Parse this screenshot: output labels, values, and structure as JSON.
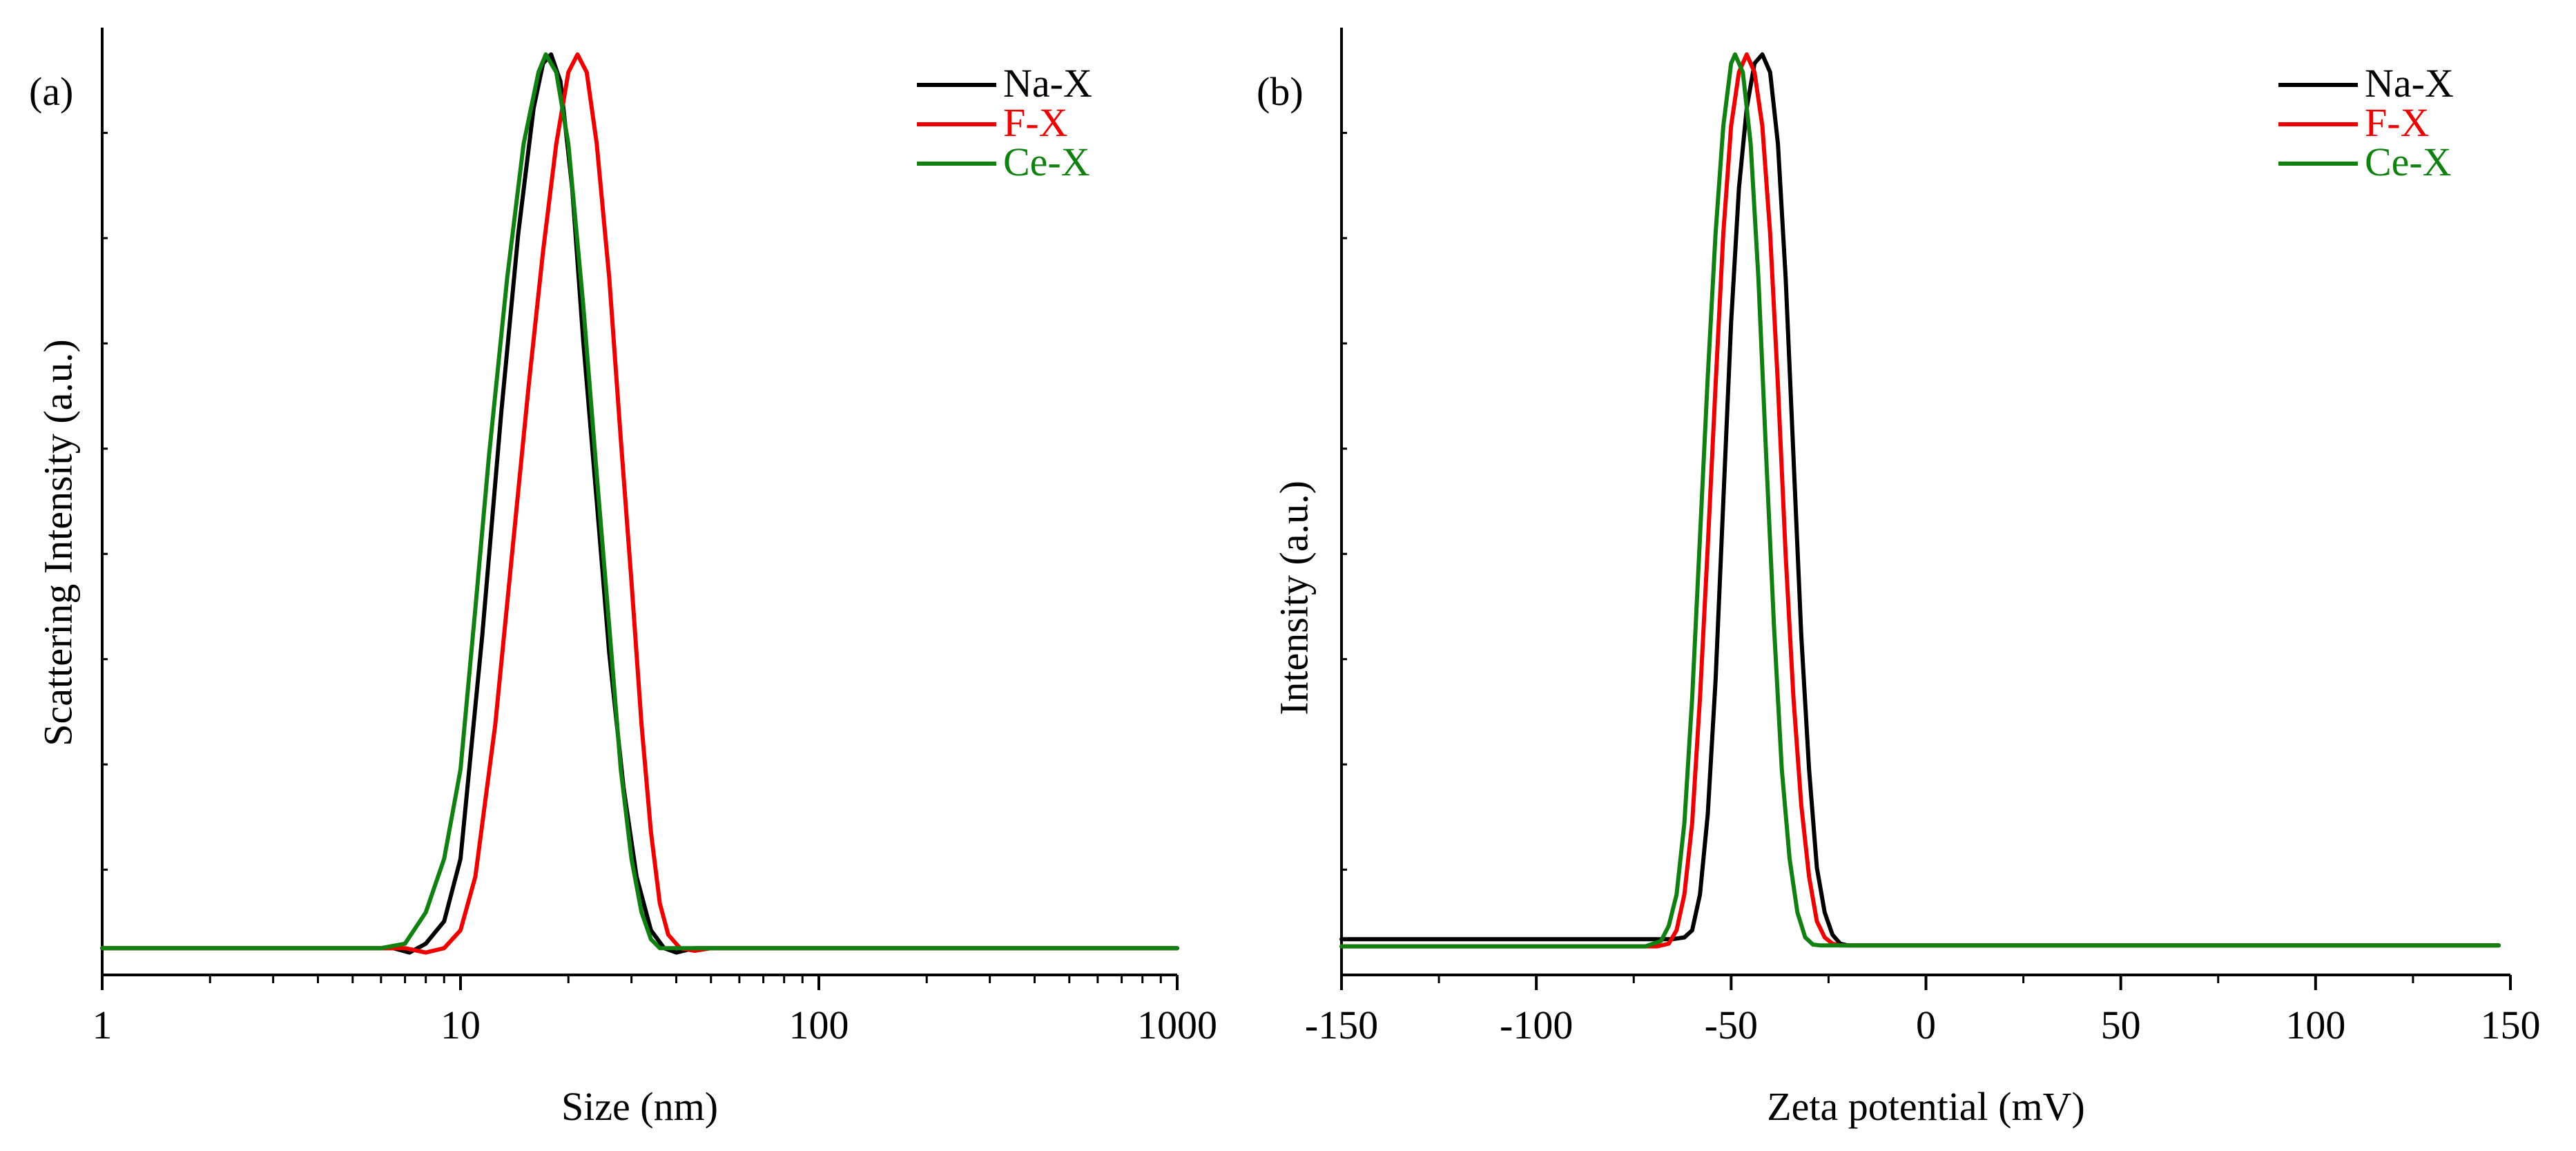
{
  "colors": {
    "series": [
      "#000000",
      "#ee0000",
      "#108010"
    ],
    "axis": "#000000"
  },
  "chart_data": [
    {
      "panel_label": "(a)",
      "type": "line",
      "x_scale": "log",
      "title": "",
      "xlabel": "Size  (nm)",
      "ylabel": "Scattering Intensity (a.u.)",
      "xlim": [
        1,
        1000
      ],
      "ylim": [
        -0.03,
        1.03
      ],
      "x_ticks": [
        1,
        10,
        100,
        1000
      ],
      "x_tick_labels": [
        "1",
        "10",
        "100",
        "1000"
      ],
      "legend": [
        "Na-X",
        "F-X",
        "Ce-X"
      ],
      "legend_position": "top-right",
      "y_tick_labels_shown": false,
      "series": [
        {
          "name": "Na-X",
          "color": "#000000",
          "baseline": 0,
          "points": [
            [
              1,
              0
            ],
            [
              6.5,
              0
            ],
            [
              7.2,
              -0.005
            ],
            [
              8,
              0.005
            ],
            [
              9,
              0.03
            ],
            [
              10,
              0.1
            ],
            [
              11.5,
              0.35
            ],
            [
              13,
              0.6
            ],
            [
              14.5,
              0.8
            ],
            [
              16,
              0.94
            ],
            [
              17,
              0.99
            ],
            [
              17.9,
              1
            ],
            [
              19,
              0.97
            ],
            [
              20.5,
              0.85
            ],
            [
              22,
              0.68
            ],
            [
              24,
              0.5
            ],
            [
              26,
              0.33
            ],
            [
              28.5,
              0.18
            ],
            [
              31,
              0.08
            ],
            [
              34,
              0.02
            ],
            [
              37,
              0
            ],
            [
              40,
              -0.005
            ],
            [
              45,
              0
            ],
            [
              1000,
              0
            ]
          ]
        },
        {
          "name": "F-X",
          "color": "#ee0000",
          "baseline": 0,
          "points": [
            [
              1,
              0
            ],
            [
              7,
              0
            ],
            [
              8,
              -0.005
            ],
            [
              9,
              0
            ],
            [
              10,
              0.02
            ],
            [
              11,
              0.08
            ],
            [
              12.5,
              0.25
            ],
            [
              14,
              0.45
            ],
            [
              15.5,
              0.63
            ],
            [
              17,
              0.78
            ],
            [
              18.5,
              0.9
            ],
            [
              20,
              0.98
            ],
            [
              21.2,
              1
            ],
            [
              22.5,
              0.98
            ],
            [
              24,
              0.9
            ],
            [
              26,
              0.75
            ],
            [
              28,
              0.57
            ],
            [
              30,
              0.41
            ],
            [
              32,
              0.25
            ],
            [
              34,
              0.13
            ],
            [
              36,
              0.05
            ],
            [
              38,
              0.015
            ],
            [
              41,
              0
            ],
            [
              45,
              -0.003
            ],
            [
              50,
              0
            ],
            [
              1000,
              0
            ]
          ]
        },
        {
          "name": "Ce-X",
          "color": "#108010",
          "baseline": 0,
          "points": [
            [
              1,
              0
            ],
            [
              6,
              0
            ],
            [
              7,
              0.005
            ],
            [
              8,
              0.04
            ],
            [
              9,
              0.1
            ],
            [
              10,
              0.2
            ],
            [
              11,
              0.38
            ],
            [
              12,
              0.55
            ],
            [
              13.5,
              0.75
            ],
            [
              15,
              0.9
            ],
            [
              16.5,
              0.98
            ],
            [
              17.3,
              1
            ],
            [
              18.5,
              0.98
            ],
            [
              20,
              0.9
            ],
            [
              22,
              0.72
            ],
            [
              24,
              0.53
            ],
            [
              26,
              0.36
            ],
            [
              28,
              0.2
            ],
            [
              30,
              0.1
            ],
            [
              32,
              0.04
            ],
            [
              34,
              0.01
            ],
            [
              36,
              0
            ],
            [
              1000,
              0
            ]
          ]
        }
      ]
    },
    {
      "panel_label": "(b)",
      "type": "line",
      "x_scale": "linear",
      "title": "",
      "xlabel": "Zeta potential (mV)",
      "ylabel": "Intensity (a.u.)",
      "xlim": [
        -150,
        150
      ],
      "ylim": [
        -0.03,
        1.03
      ],
      "x_ticks": [
        -150,
        -100,
        -50,
        0,
        50,
        100,
        150
      ],
      "x_tick_labels": [
        "-150",
        "-100",
        "-50",
        "0",
        "50",
        "100",
        "150"
      ],
      "legend": [
        "Na-X",
        "F-X",
        "Ce-X"
      ],
      "legend_position": "top-right",
      "y_tick_labels_shown": false,
      "series": [
        {
          "name": "Na-X",
          "color": "#000000",
          "baseline": 0.01,
          "points": [
            [
              -150,
              0.01
            ],
            [
              -65,
              0.01
            ],
            [
              -62,
              0.012
            ],
            [
              -60,
              0.02
            ],
            [
              -58,
              0.06
            ],
            [
              -56,
              0.15
            ],
            [
              -54,
              0.3
            ],
            [
              -52,
              0.5
            ],
            [
              -50,
              0.7
            ],
            [
              -48,
              0.85
            ],
            [
              -46,
              0.94
            ],
            [
              -44,
              0.99
            ],
            [
              -42,
              1
            ],
            [
              -40,
              0.98
            ],
            [
              -38,
              0.9
            ],
            [
              -36,
              0.75
            ],
            [
              -34,
              0.55
            ],
            [
              -32,
              0.35
            ],
            [
              -30,
              0.2
            ],
            [
              -28,
              0.09
            ],
            [
              -26,
              0.04
            ],
            [
              -24,
              0.015
            ],
            [
              -22,
              0.005
            ],
            [
              -20,
              0.003
            ],
            [
              147,
              0.003
            ]
          ]
        },
        {
          "name": "F-X",
          "color": "#ee0000",
          "baseline": 0.002,
          "points": [
            [
              -150,
              0.002
            ],
            [
              -69,
              0.002
            ],
            [
              -66,
              0.005
            ],
            [
              -64,
              0.02
            ],
            [
              -62,
              0.06
            ],
            [
              -60,
              0.14
            ],
            [
              -58,
              0.28
            ],
            [
              -56,
              0.45
            ],
            [
              -54,
              0.63
            ],
            [
              -52,
              0.8
            ],
            [
              -50,
              0.92
            ],
            [
              -48,
              0.98
            ],
            [
              -46,
              1
            ],
            [
              -44,
              0.98
            ],
            [
              -42,
              0.92
            ],
            [
              -40,
              0.8
            ],
            [
              -38,
              0.63
            ],
            [
              -36,
              0.44
            ],
            [
              -34,
              0.28
            ],
            [
              -32,
              0.16
            ],
            [
              -30,
              0.08
            ],
            [
              -28,
              0.03
            ],
            [
              -26,
              0.012
            ],
            [
              -24,
              0.005
            ],
            [
              -22,
              0.003
            ],
            [
              147,
              0.003
            ]
          ]
        },
        {
          "name": "Ce-X",
          "color": "#108010",
          "baseline": 0.002,
          "points": [
            [
              -150,
              0.002
            ],
            [
              -72,
              0.002
            ],
            [
              -68,
              0.008
            ],
            [
              -66,
              0.025
            ],
            [
              -64,
              0.06
            ],
            [
              -62,
              0.14
            ],
            [
              -60,
              0.28
            ],
            [
              -58,
              0.46
            ],
            [
              -56,
              0.64
            ],
            [
              -54,
              0.8
            ],
            [
              -52,
              0.92
            ],
            [
              -50,
              0.99
            ],
            [
              -49,
              1
            ],
            [
              -47,
              0.98
            ],
            [
              -45,
              0.9
            ],
            [
              -43,
              0.75
            ],
            [
              -41,
              0.55
            ],
            [
              -39,
              0.36
            ],
            [
              -37,
              0.2
            ],
            [
              -35,
              0.1
            ],
            [
              -33,
              0.04
            ],
            [
              -31,
              0.012
            ],
            [
              -29,
              0.004
            ],
            [
              -27,
              0.003
            ],
            [
              147,
              0.003
            ]
          ]
        }
      ]
    }
  ]
}
